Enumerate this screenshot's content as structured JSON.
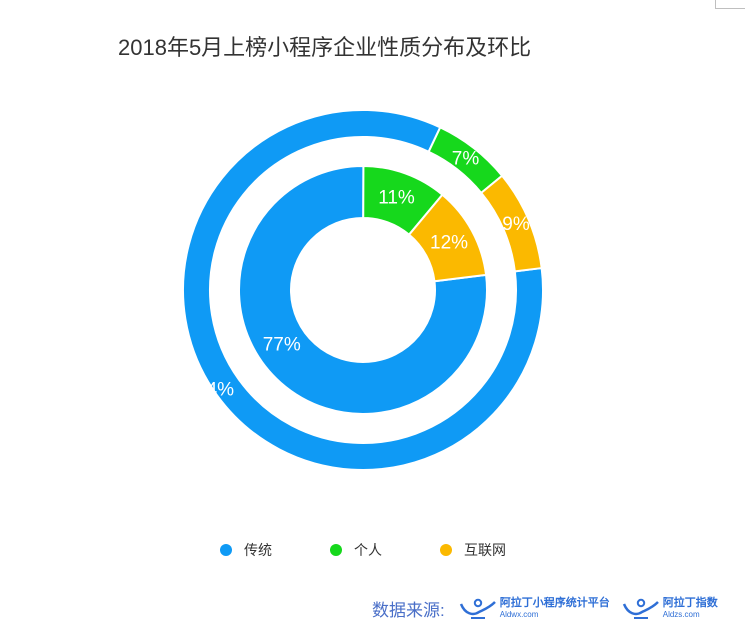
{
  "title": "2018年5月上榜小程序企业性质分布及环比",
  "colors": {
    "传统": "#0f9af5",
    "个人": "#16d81c",
    "互联网": "#fbb900"
  },
  "chart_data": {
    "type": "donut",
    "title": "2018年5月上榜小程序企业性质分布及环比",
    "categories": [
      "传统",
      "个人",
      "互联网"
    ],
    "series": [
      {
        "ring": "outer",
        "values": [
          84,
          7,
          9
        ],
        "labels": [
          "84%",
          "7%",
          "9%"
        ]
      },
      {
        "ring": "inner",
        "values": [
          77,
          11,
          12
        ],
        "labels": [
          "77%",
          "11%",
          "12%"
        ]
      }
    ],
    "legend_position": "bottom"
  },
  "legend": [
    {
      "label": "传统",
      "color": "#0f9af5"
    },
    {
      "label": "个人",
      "color": "#16d81c"
    },
    {
      "label": "互联网",
      "color": "#fbb900"
    }
  ],
  "source": {
    "label": "数据来源:",
    "brands": [
      {
        "name": "阿拉丁小程序统计平台",
        "url": "Aldwx.com"
      },
      {
        "name": "阿拉丁指数",
        "url": "Aldzs.com"
      }
    ]
  }
}
